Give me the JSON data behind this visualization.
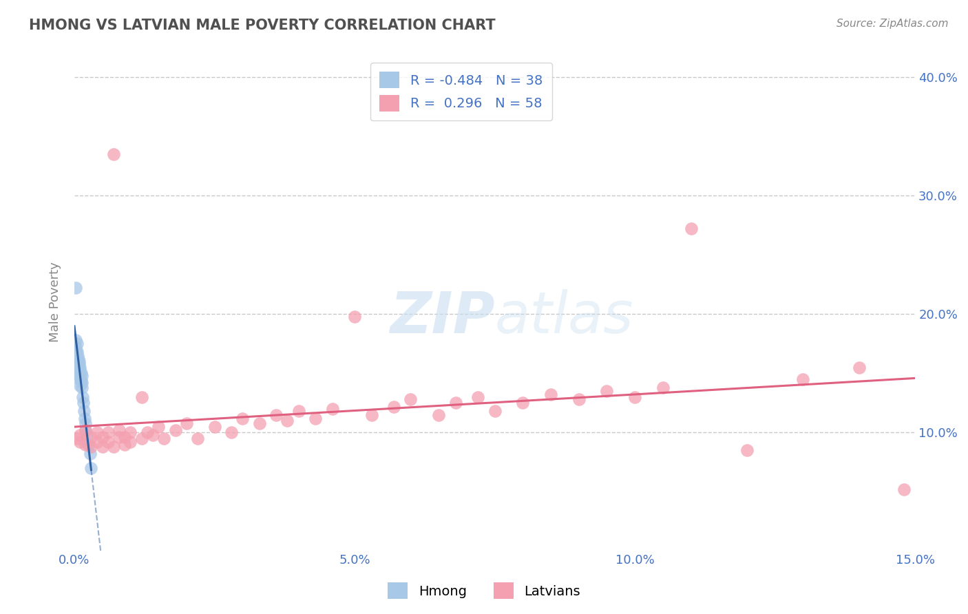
{
  "title": "HMONG VS LATVIAN MALE POVERTY CORRELATION CHART",
  "source": "Source: ZipAtlas.com",
  "ylabel": "Male Poverty",
  "xlim": [
    0.0,
    0.15
  ],
  "ylim": [
    0.0,
    0.42
  ],
  "xticks": [
    0.0,
    0.05,
    0.1,
    0.15
  ],
  "xtick_labels": [
    "0.0%",
    "5.0%",
    "10.0%",
    "15.0%"
  ],
  "yticks": [
    0.1,
    0.2,
    0.3,
    0.4
  ],
  "ytick_labels": [
    "10.0%",
    "20.0%",
    "30.0%",
    "40.0%"
  ],
  "hmong_R": -0.484,
  "hmong_N": 38,
  "latvian_R": 0.296,
  "latvian_N": 58,
  "hmong_color": "#a8c8e8",
  "latvian_color": "#f4a0b0",
  "hmong_line_color": "#3060a0",
  "latvian_line_color": "#e06080",
  "background_color": "#ffffff",
  "title_color": "#505050",
  "axis_color": "#4472c4",
  "grid_color": "#c8c8c8",
  "hmong_x": [
    0.0002,
    0.0003,
    0.0003,
    0.0004,
    0.0004,
    0.0005,
    0.0005,
    0.0005,
    0.0006,
    0.0006,
    0.0006,
    0.0007,
    0.0007,
    0.0007,
    0.0008,
    0.0008,
    0.0009,
    0.0009,
    0.0009,
    0.001,
    0.001,
    0.001,
    0.001,
    0.0012,
    0.0012,
    0.0013,
    0.0013,
    0.0014,
    0.0015,
    0.0016,
    0.0017,
    0.0018,
    0.002,
    0.002,
    0.0022,
    0.0025,
    0.0028,
    0.003
  ],
  "hmong_y": [
    0.222,
    0.178,
    0.172,
    0.168,
    0.162,
    0.175,
    0.168,
    0.162,
    0.165,
    0.16,
    0.155,
    0.162,
    0.158,
    0.153,
    0.16,
    0.155,
    0.158,
    0.153,
    0.148,
    0.155,
    0.15,
    0.145,
    0.14,
    0.15,
    0.144,
    0.148,
    0.142,
    0.138,
    0.13,
    0.125,
    0.118,
    0.112,
    0.108,
    0.102,
    0.098,
    0.09,
    0.082,
    0.07
  ],
  "latvian_x": [
    0.0005,
    0.001,
    0.001,
    0.002,
    0.002,
    0.003,
    0.003,
    0.004,
    0.004,
    0.005,
    0.005,
    0.006,
    0.006,
    0.007,
    0.007,
    0.008,
    0.008,
    0.009,
    0.009,
    0.01,
    0.01,
    0.012,
    0.012,
    0.013,
    0.014,
    0.015,
    0.016,
    0.018,
    0.02,
    0.022,
    0.025,
    0.028,
    0.03,
    0.033,
    0.036,
    0.038,
    0.04,
    0.043,
    0.046,
    0.05,
    0.053,
    0.057,
    0.06,
    0.065,
    0.068,
    0.072,
    0.075,
    0.08,
    0.085,
    0.09,
    0.095,
    0.1,
    0.105,
    0.11,
    0.12,
    0.13,
    0.14,
    0.148
  ],
  "latvian_y": [
    0.095,
    0.092,
    0.098,
    0.09,
    0.102,
    0.088,
    0.096,
    0.092,
    0.1,
    0.088,
    0.096,
    0.092,
    0.1,
    0.335,
    0.088,
    0.096,
    0.102,
    0.09,
    0.096,
    0.092,
    0.1,
    0.13,
    0.095,
    0.1,
    0.098,
    0.105,
    0.095,
    0.102,
    0.108,
    0.095,
    0.105,
    0.1,
    0.112,
    0.108,
    0.115,
    0.11,
    0.118,
    0.112,
    0.12,
    0.198,
    0.115,
    0.122,
    0.128,
    0.115,
    0.125,
    0.13,
    0.118,
    0.125,
    0.132,
    0.128,
    0.135,
    0.13,
    0.138,
    0.272,
    0.085,
    0.145,
    0.155,
    0.052
  ]
}
